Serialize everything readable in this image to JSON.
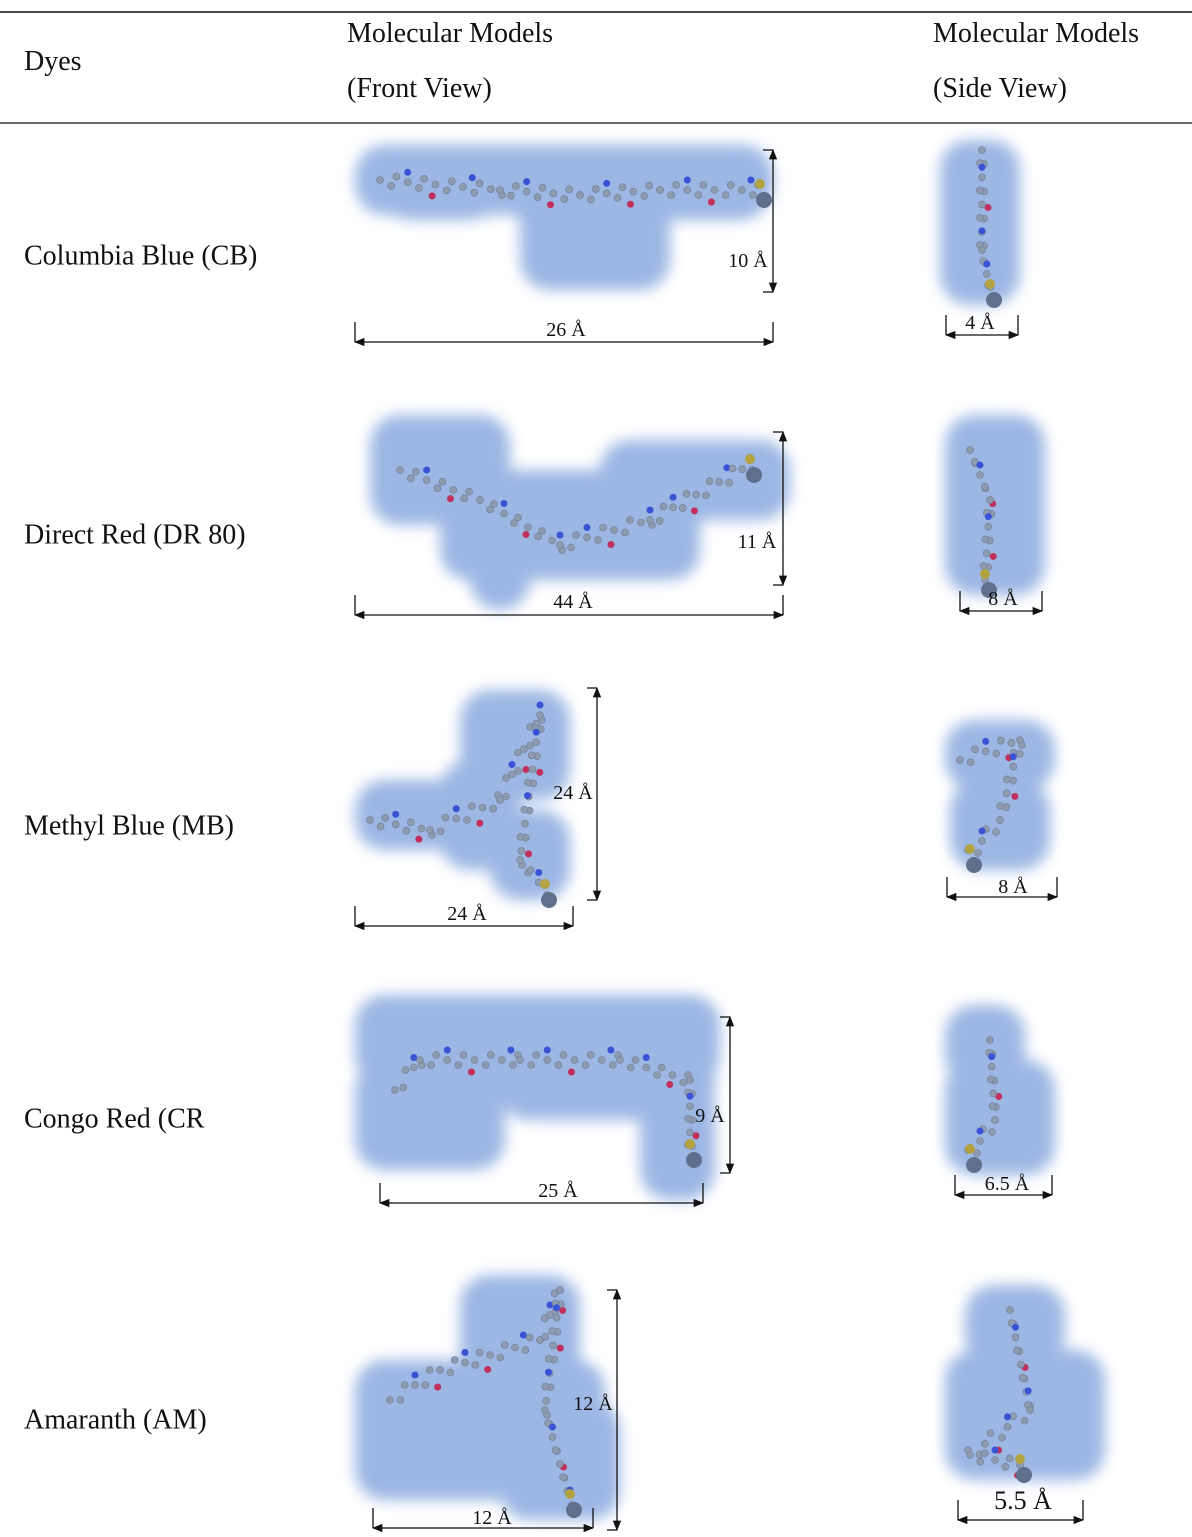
{
  "header": {
    "dyes": "Dyes",
    "front": [
      "Molecular Models",
      "(Front View)"
    ],
    "side": [
      "Molecular Models",
      "(Side View)"
    ]
  },
  "rows": [
    {
      "dye": "Columbia Blue (CB)",
      "front_width": "26 Å",
      "front_height": "10 Å",
      "side_width": "4 Å"
    },
    {
      "dye": "Direct Red (DR 80)",
      "front_width": "44 Å",
      "front_height": "11 Å",
      "side_width": "8 Å"
    },
    {
      "dye": "Methyl Blue (MB)",
      "front_width": "24 Å",
      "front_height": "24 Å",
      "side_width": "8 Å"
    },
    {
      "dye": "Congo Red (CR",
      "front_width": "25 Å",
      "front_height": "9 Å",
      "side_width": "6.5 Å"
    },
    {
      "dye": "Amaranth (AM)",
      "front_width": "12 Å",
      "front_height": "12 Å",
      "side_width": "5.5 Å"
    }
  ]
}
